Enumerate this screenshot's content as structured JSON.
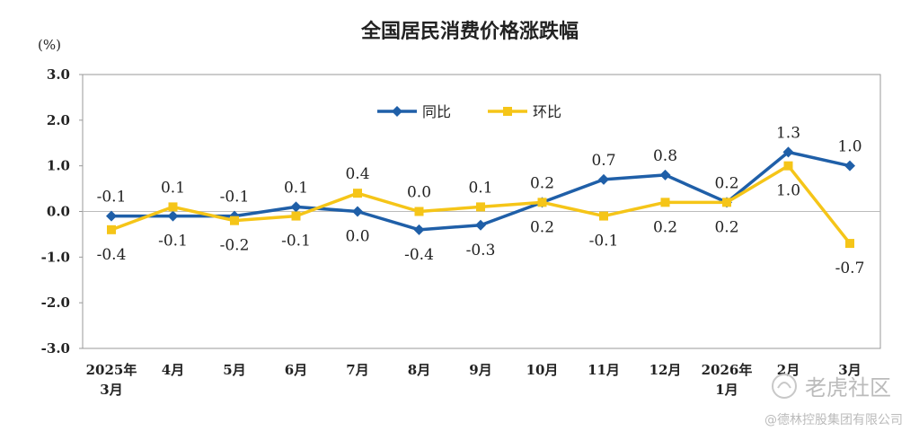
{
  "chart_data": {
    "type": "line",
    "title": "全国居民消费价格涨跌幅",
    "unit_label": "(%)",
    "ylim": [
      -3.0,
      3.0
    ],
    "yticks": [
      3.0,
      2.0,
      1.0,
      0.0,
      -1.0,
      -2.0,
      -3.0
    ],
    "ytick_labels": [
      "3.0",
      "2.0",
      "1.0",
      "0.0",
      "-1.0",
      "-2.0",
      "-3.0"
    ],
    "categories": [
      [
        "2025年",
        "3月"
      ],
      [
        "4月"
      ],
      [
        "5月"
      ],
      [
        "6月"
      ],
      [
        "7月"
      ],
      [
        "8月"
      ],
      [
        "9月"
      ],
      [
        "10月"
      ],
      [
        "11月"
      ],
      [
        "12月"
      ],
      [
        "2026年",
        "1月"
      ],
      [
        "2月"
      ],
      [
        "3月"
      ]
    ],
    "series": [
      {
        "name": "同比",
        "color": "#1f5fa8",
        "values": [
          -0.1,
          -0.1,
          -0.1,
          0.1,
          0.0,
          -0.4,
          -0.3,
          0.2,
          0.7,
          0.8,
          0.2,
          1.3,
          1.0
        ],
        "labels": [
          "-0.1",
          "-0.1",
          "-0.1",
          "0.1",
          "0.0",
          "-0.4",
          "-0.3",
          "0.2",
          "0.7",
          "0.8",
          "0.2",
          "1.3",
          "1.0"
        ],
        "label_pos": [
          "above",
          "below",
          "above",
          "above",
          "below",
          "below",
          "below",
          "above",
          "above",
          "above",
          "above",
          "above",
          "above"
        ]
      },
      {
        "name": "环比",
        "color": "#f5c518",
        "values": [
          -0.4,
          0.1,
          -0.2,
          -0.1,
          0.4,
          0.0,
          0.1,
          0.2,
          -0.1,
          0.2,
          0.2,
          1.0,
          -0.7
        ],
        "labels": [
          "-0.4",
          "0.1",
          "-0.2",
          "-0.1",
          "0.4",
          "0.0",
          "0.1",
          "0.2",
          "-0.1",
          "0.2",
          "0.2",
          "1.0",
          "-0.7"
        ],
        "label_pos": [
          "below",
          "above",
          "below",
          "below",
          "above",
          "above",
          "above",
          "below",
          "below",
          "below",
          "below",
          "below",
          "below"
        ]
      }
    ],
    "legend_placement": "top-center",
    "grid": false
  },
  "watermark": {
    "brand": "老虎社区",
    "credit": "@德林控股集团有限公司"
  }
}
